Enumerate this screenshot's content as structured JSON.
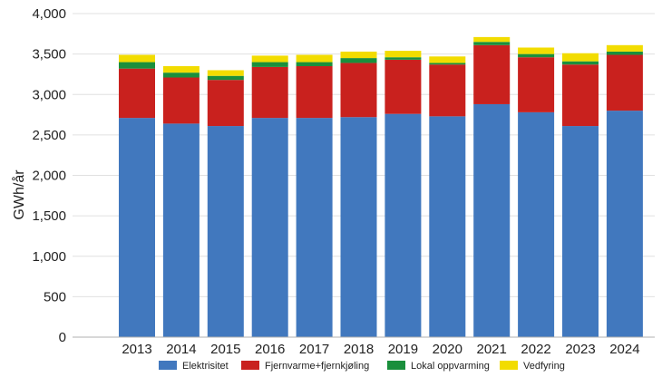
{
  "chart_data": {
    "type": "bar",
    "stacked": true,
    "title": "",
    "xlabel": "",
    "ylabel": "GWh/år",
    "ylim": [
      0,
      4000
    ],
    "yticks": [
      "0",
      "500",
      "1,000",
      "1,500",
      "2,000",
      "2,500",
      "3,000",
      "3,500",
      "4,000"
    ],
    "ytick_values": [
      0,
      500,
      1000,
      1500,
      2000,
      2500,
      3000,
      3500,
      4000
    ],
    "grid": "horizontal",
    "legend_position": "bottom",
    "categories": [
      "2013",
      "2014",
      "2015",
      "2016",
      "2017",
      "2018",
      "2019",
      "2020",
      "2021",
      "2022",
      "2023",
      "2024"
    ],
    "series": [
      {
        "name": "Elektrisitet",
        "color": "#4178be",
        "values": [
          2710,
          2640,
          2610,
          2710,
          2710,
          2720,
          2760,
          2730,
          2880,
          2780,
          2610,
          2800
        ]
      },
      {
        "name": "Fjernvarme+fjernkjøling",
        "color": "#c9211e",
        "values": [
          610,
          570,
          570,
          630,
          640,
          670,
          670,
          640,
          730,
          680,
          760,
          690
        ]
      },
      {
        "name": "Lokal oppvarming",
        "color": "#1a8f3c",
        "values": [
          80,
          60,
          50,
          60,
          50,
          60,
          30,
          20,
          40,
          40,
          40,
          40
        ]
      },
      {
        "name": "Vedfyring",
        "color": "#f2dc00",
        "values": [
          90,
          80,
          70,
          80,
          90,
          80,
          80,
          80,
          60,
          80,
          100,
          80
        ]
      }
    ]
  }
}
